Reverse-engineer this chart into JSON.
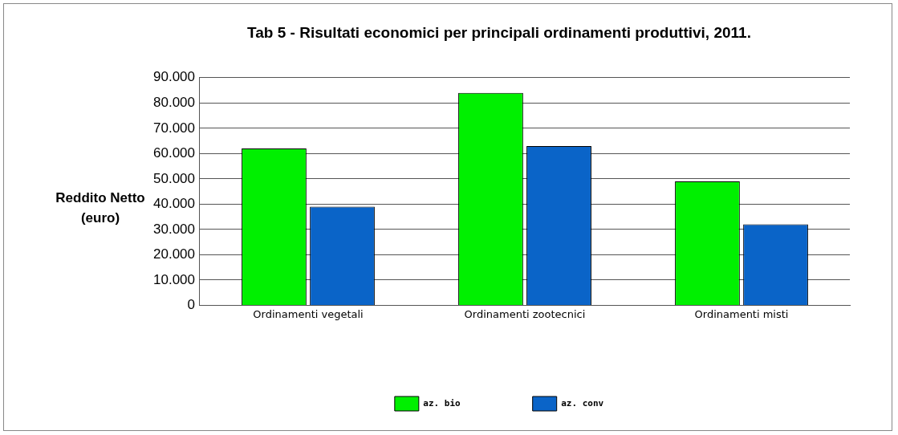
{
  "chart_data": {
    "type": "bar",
    "title": "Tab 5 - Risultati economici per principali ordinamenti produttivi, 2011.",
    "ylabel": "Reddito Netto\n(euro)",
    "categories": [
      "Ordinamenti vegetali",
      "Ordinamenti zootecnici",
      "Ordinamenti misti"
    ],
    "series": [
      {
        "name": "az. bio",
        "color": "#00f000",
        "values": [
          62000,
          84000,
          49000
        ]
      },
      {
        "name": "az. conv",
        "color": "#0a64c8",
        "values": [
          39000,
          63000,
          32000
        ]
      }
    ],
    "ylim": [
      0,
      90000
    ],
    "yticks": [
      {
        "value": 0,
        "label": "0"
      },
      {
        "value": 10000,
        "label": "10.000"
      },
      {
        "value": 20000,
        "label": "20.000"
      },
      {
        "value": 30000,
        "label": "30.000"
      },
      {
        "value": 40000,
        "label": "40.000"
      },
      {
        "value": 50000,
        "label": "50.000"
      },
      {
        "value": 60000,
        "label": "60.000"
      },
      {
        "value": 70000,
        "label": "70.000"
      },
      {
        "value": 80000,
        "label": "80.000"
      },
      {
        "value": 90000,
        "label": "90.000"
      }
    ],
    "grid": "y",
    "legend": "bottom"
  }
}
